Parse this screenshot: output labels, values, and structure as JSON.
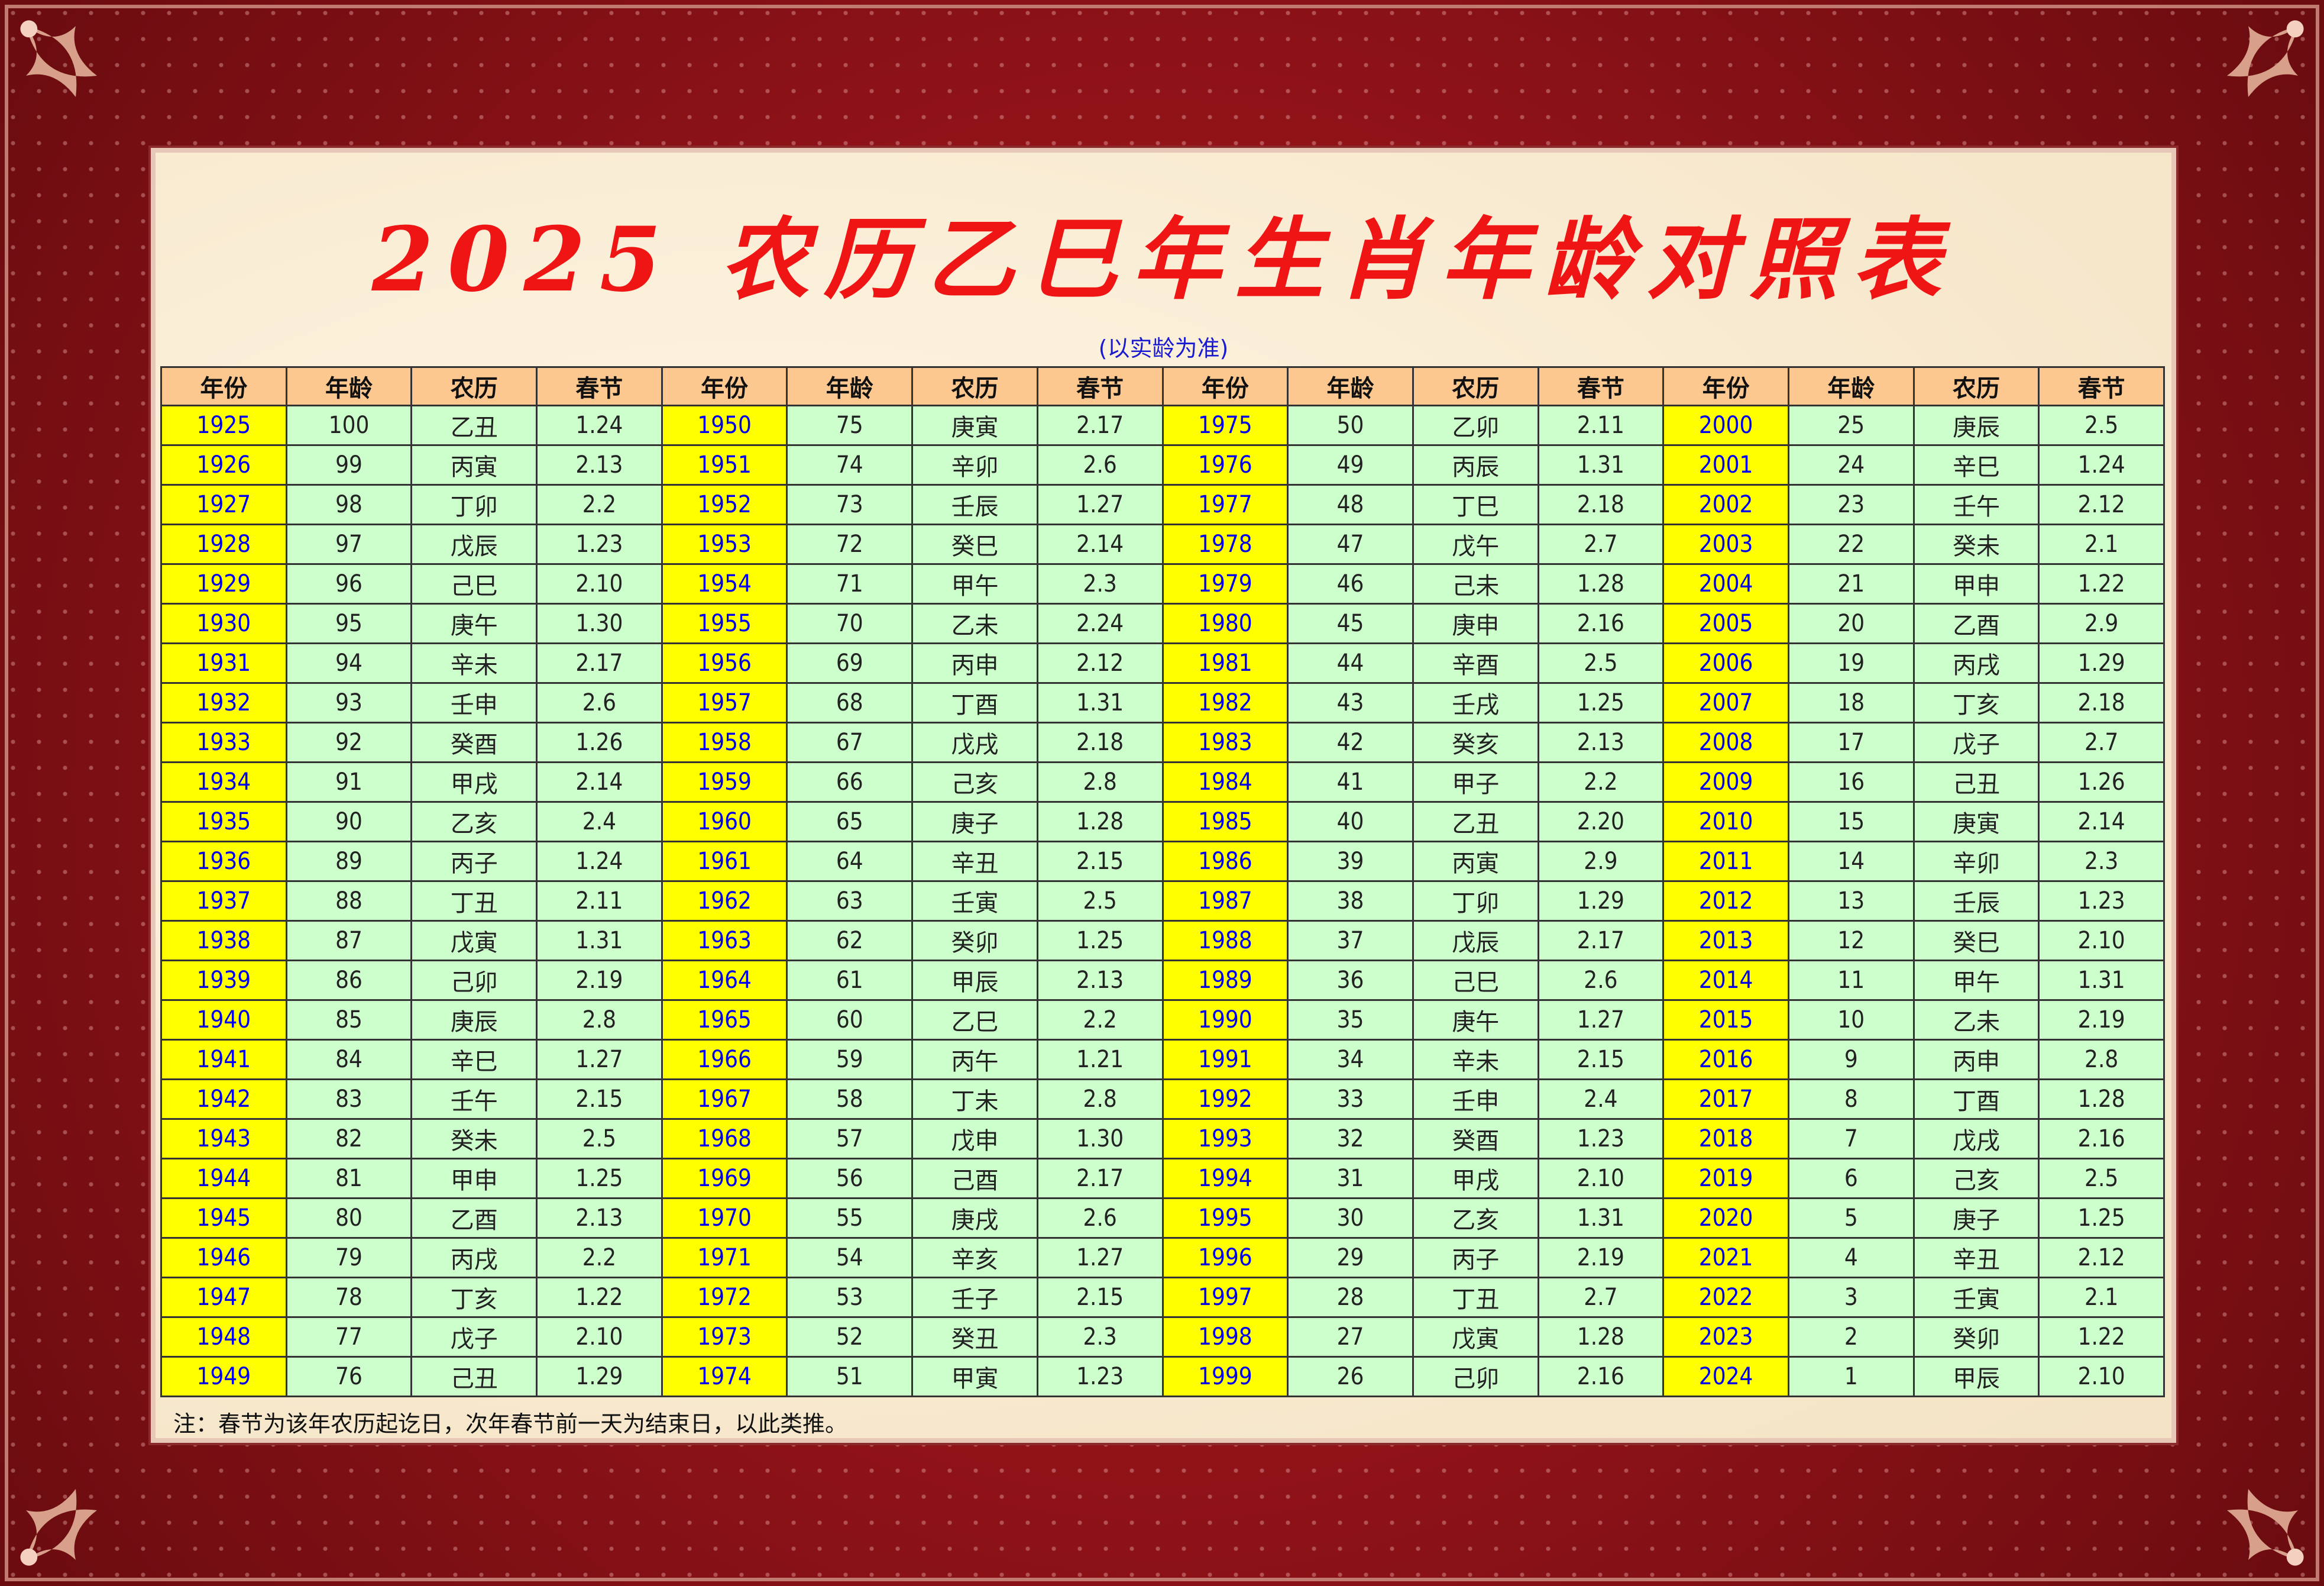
{
  "title": "2025 农历乙巳年生肖年龄对照表",
  "subtitle": "(以实龄为准)",
  "colors": {
    "frame": "#7d1116",
    "title": "#f01515",
    "header_bg": "#fcc890",
    "year_bg": "#ffff00",
    "year_text": "#0000ee",
    "cell_bg": "#ccffcc"
  },
  "table": {
    "headers": [
      "年份",
      "年龄",
      "农历",
      "春节",
      "年份",
      "年龄",
      "农历",
      "春节",
      "年份",
      "年龄",
      "农历",
      "春节",
      "年份",
      "年龄",
      "农历",
      "春节"
    ],
    "rows": [
      [
        "1925",
        "100",
        "乙丑",
        "1.24",
        "1950",
        "75",
        "庚寅",
        "2.17",
        "1975",
        "50",
        "乙卯",
        "2.11",
        "2000",
        "25",
        "庚辰",
        "2.5"
      ],
      [
        "1926",
        "99",
        "丙寅",
        "2.13",
        "1951",
        "74",
        "辛卯",
        "2.6",
        "1976",
        "49",
        "丙辰",
        "1.31",
        "2001",
        "24",
        "辛巳",
        "1.24"
      ],
      [
        "1927",
        "98",
        "丁卯",
        "2.2",
        "1952",
        "73",
        "壬辰",
        "1.27",
        "1977",
        "48",
        "丁巳",
        "2.18",
        "2002",
        "23",
        "壬午",
        "2.12"
      ],
      [
        "1928",
        "97",
        "戊辰",
        "1.23",
        "1953",
        "72",
        "癸巳",
        "2.14",
        "1978",
        "47",
        "戊午",
        "2.7",
        "2003",
        "22",
        "癸未",
        "2.1"
      ],
      [
        "1929",
        "96",
        "己巳",
        "2.10",
        "1954",
        "71",
        "甲午",
        "2.3",
        "1979",
        "46",
        "己未",
        "1.28",
        "2004",
        "21",
        "甲申",
        "1.22"
      ],
      [
        "1930",
        "95",
        "庚午",
        "1.30",
        "1955",
        "70",
        "乙未",
        "2.24",
        "1980",
        "45",
        "庚申",
        "2.16",
        "2005",
        "20",
        "乙酉",
        "2.9"
      ],
      [
        "1931",
        "94",
        "辛未",
        "2.17",
        "1956",
        "69",
        "丙申",
        "2.12",
        "1981",
        "44",
        "辛酉",
        "2.5",
        "2006",
        "19",
        "丙戌",
        "1.29"
      ],
      [
        "1932",
        "93",
        "壬申",
        "2.6",
        "1957",
        "68",
        "丁酉",
        "1.31",
        "1982",
        "43",
        "壬戌",
        "1.25",
        "2007",
        "18",
        "丁亥",
        "2.18"
      ],
      [
        "1933",
        "92",
        "癸酉",
        "1.26",
        "1958",
        "67",
        "戊戌",
        "2.18",
        "1983",
        "42",
        "癸亥",
        "2.13",
        "2008",
        "17",
        "戊子",
        "2.7"
      ],
      [
        "1934",
        "91",
        "甲戌",
        "2.14",
        "1959",
        "66",
        "己亥",
        "2.8",
        "1984",
        "41",
        "甲子",
        "2.2",
        "2009",
        "16",
        "己丑",
        "1.26"
      ],
      [
        "1935",
        "90",
        "乙亥",
        "2.4",
        "1960",
        "65",
        "庚子",
        "1.28",
        "1985",
        "40",
        "乙丑",
        "2.20",
        "2010",
        "15",
        "庚寅",
        "2.14"
      ],
      [
        "1936",
        "89",
        "丙子",
        "1.24",
        "1961",
        "64",
        "辛丑",
        "2.15",
        "1986",
        "39",
        "丙寅",
        "2.9",
        "2011",
        "14",
        "辛卯",
        "2.3"
      ],
      [
        "1937",
        "88",
        "丁丑",
        "2.11",
        "1962",
        "63",
        "壬寅",
        "2.5",
        "1987",
        "38",
        "丁卯",
        "1.29",
        "2012",
        "13",
        "壬辰",
        "1.23"
      ],
      [
        "1938",
        "87",
        "戊寅",
        "1.31",
        "1963",
        "62",
        "癸卯",
        "1.25",
        "1988",
        "37",
        "戊辰",
        "2.17",
        "2013",
        "12",
        "癸巳",
        "2.10"
      ],
      [
        "1939",
        "86",
        "己卯",
        "2.19",
        "1964",
        "61",
        "甲辰",
        "2.13",
        "1989",
        "36",
        "己巳",
        "2.6",
        "2014",
        "11",
        "甲午",
        "1.31"
      ],
      [
        "1940",
        "85",
        "庚辰",
        "2.8",
        "1965",
        "60",
        "乙巳",
        "2.2",
        "1990",
        "35",
        "庚午",
        "1.27",
        "2015",
        "10",
        "乙未",
        "2.19"
      ],
      [
        "1941",
        "84",
        "辛巳",
        "1.27",
        "1966",
        "59",
        "丙午",
        "1.21",
        "1991",
        "34",
        "辛未",
        "2.15",
        "2016",
        "9",
        "丙申",
        "2.8"
      ],
      [
        "1942",
        "83",
        "壬午",
        "2.15",
        "1967",
        "58",
        "丁未",
        "2.8",
        "1992",
        "33",
        "壬申",
        "2.4",
        "2017",
        "8",
        "丁酉",
        "1.28"
      ],
      [
        "1943",
        "82",
        "癸未",
        "2.5",
        "1968",
        "57",
        "戊申",
        "1.30",
        "1993",
        "32",
        "癸酉",
        "1.23",
        "2018",
        "7",
        "戊戌",
        "2.16"
      ],
      [
        "1944",
        "81",
        "甲申",
        "1.25",
        "1969",
        "56",
        "己酉",
        "2.17",
        "1994",
        "31",
        "甲戌",
        "2.10",
        "2019",
        "6",
        "己亥",
        "2.5"
      ],
      [
        "1945",
        "80",
        "乙酉",
        "2.13",
        "1970",
        "55",
        "庚戌",
        "2.6",
        "1995",
        "30",
        "乙亥",
        "1.31",
        "2020",
        "5",
        "庚子",
        "1.25"
      ],
      [
        "1946",
        "79",
        "丙戌",
        "2.2",
        "1971",
        "54",
        "辛亥",
        "1.27",
        "1996",
        "29",
        "丙子",
        "2.19",
        "2021",
        "4",
        "辛丑",
        "2.12"
      ],
      [
        "1947",
        "78",
        "丁亥",
        "1.22",
        "1972",
        "53",
        "壬子",
        "2.15",
        "1997",
        "28",
        "丁丑",
        "2.7",
        "2022",
        "3",
        "壬寅",
        "2.1"
      ],
      [
        "1948",
        "77",
        "戊子",
        "2.10",
        "1973",
        "52",
        "癸丑",
        "2.3",
        "1998",
        "27",
        "戊寅",
        "1.28",
        "2023",
        "2",
        "癸卯",
        "1.22"
      ],
      [
        "1949",
        "76",
        "己丑",
        "1.29",
        "1974",
        "51",
        "甲寅",
        "1.23",
        "1999",
        "26",
        "己卯",
        "2.16",
        "2024",
        "1",
        "甲辰",
        "2.10"
      ]
    ]
  },
  "note": "注：春节为该年农历起讫日，次年春节前一天为结束日，以此类推。"
}
